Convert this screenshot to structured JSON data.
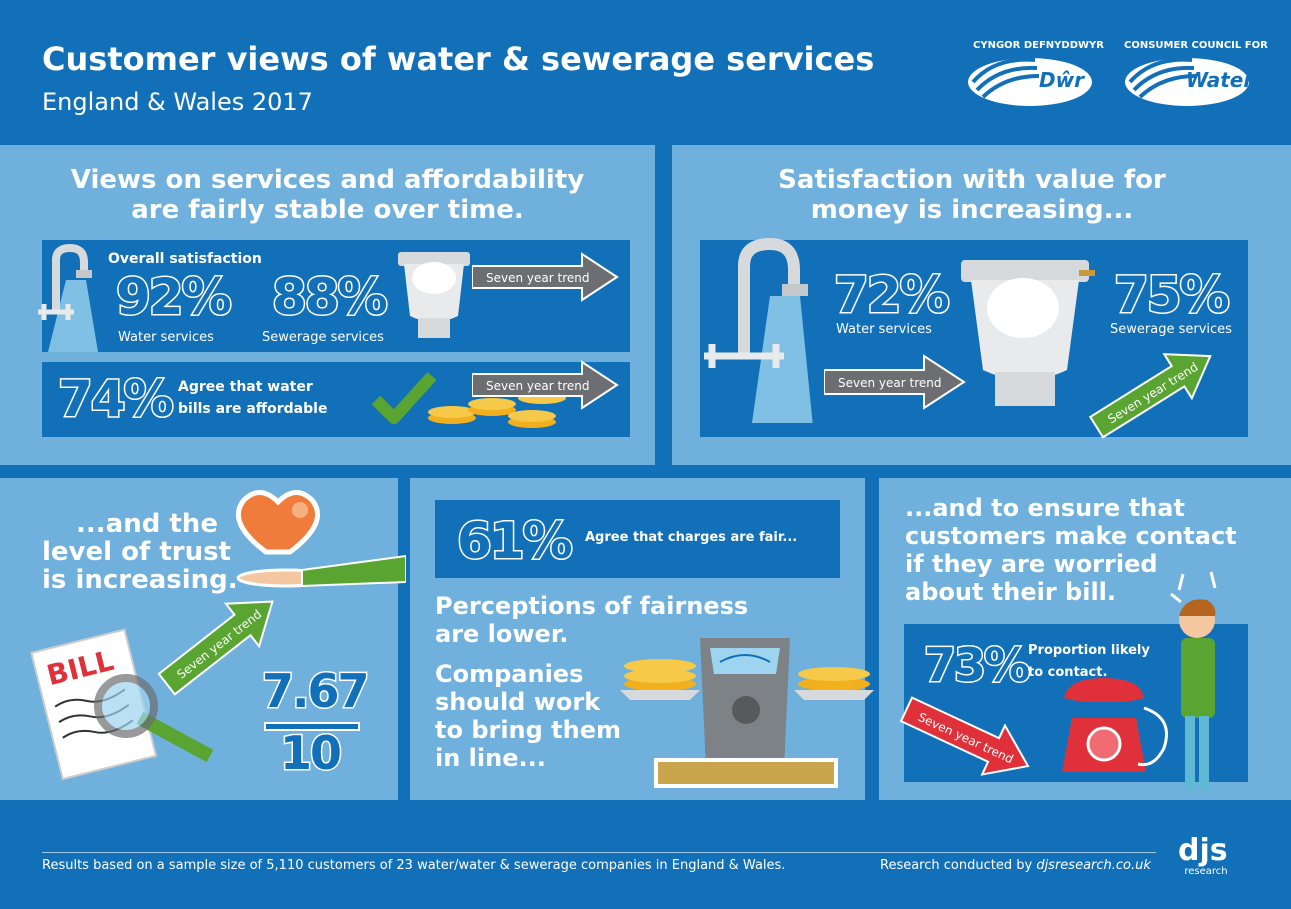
{
  "header": {
    "title": "Customer views of water & sewerage services",
    "subtitle": "England & Wales 2017",
    "logo_cy_org": "CYNGOR DEFNYDDWYR",
    "logo_cy_word": "Dŵr",
    "logo_en_org": "CONSUMER COUNCIL FOR",
    "logo_en_word": "Water"
  },
  "panel1": {
    "heading_line1": "Views on services and affordability",
    "heading_line2": "are fairly stable over time.",
    "overall_label": "Overall satisfaction",
    "water_pct": "92%",
    "water_label": "Water services",
    "sewerage_pct": "88%",
    "sewerage_label": "Sewerage services",
    "trend1": "Seven year trend",
    "afford_pct": "74%",
    "afford_line1": "Agree that water",
    "afford_line2": "bills are affordable",
    "trend2": "Seven year trend"
  },
  "panel2": {
    "heading_line1": "Satisfaction with value for",
    "heading_line2": "money is increasing...",
    "water_pct": "72%",
    "water_label": "Water services",
    "sewerage_pct": "75%",
    "sewerage_label": "Sewerage services",
    "trend_water": "Seven year trend",
    "trend_sewer": "Seven year trend"
  },
  "panel3": {
    "line1": "...and the",
    "line2": "level of trust",
    "line3": "is increasing.",
    "bill_word": "BILL",
    "trend": "Seven year trend",
    "score": "7.67",
    "out_of": "10"
  },
  "panel4": {
    "pct": "61%",
    "label": "Agree that charges are fair...",
    "perc_line1": "Perceptions of fairness",
    "perc_line2": "are lower.",
    "co_line1": "Companies",
    "co_line2": "should work",
    "co_line3": "to bring them",
    "co_line4": "in line..."
  },
  "panel5": {
    "line1": "...and to ensure that",
    "line2": "customers make contact",
    "line3": "if they are worried",
    "line4": "about their bill.",
    "pct": "73%",
    "label_line1": "Proportion likely",
    "label_line2": "to contact.",
    "trend": "Seven year trend"
  },
  "footer": {
    "note": "Results based on a sample size of 5,110 customers of 23 water/water & sewerage companies in England & Wales.",
    "research_prefix": "Research conducted by ",
    "research_site": "djsresearch.co.uk",
    "brand": "djs",
    "brand_sub": "research"
  },
  "colors": {
    "dark_blue": "#1270b8",
    "light_blue": "#6fb0dc",
    "green": "#5aa532",
    "red": "#e0303a",
    "grey_arrow": "#6d6e71"
  }
}
